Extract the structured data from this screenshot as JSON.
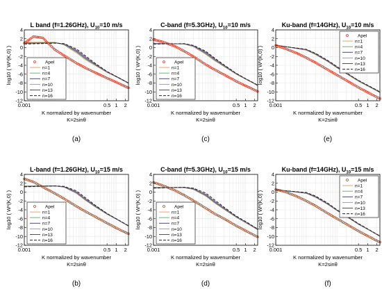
{
  "figure": {
    "captions": [
      "(a)",
      "(c)",
      "(e)",
      "(b)",
      "(d)",
      "(f)"
    ]
  },
  "chart_data": [
    {
      "type": "line",
      "title": "L band (f=1.26GHz), U10=10 m/s",
      "title_parts": {
        "pre": "L band (f=1.26GHz), U",
        "sub": "10",
        "post": "=10 m/s"
      },
      "xlabel": "K normalized by wavenumber",
      "xlabel2": "K=2sinθ",
      "ylabel": "log10 ( Wⁿ(K,0) )",
      "xscale": "log",
      "xlim": [
        0.001,
        2.5
      ],
      "ylim": [
        -12,
        4
      ],
      "xticks": [
        "0.001",
        "0.5",
        "1",
        "2"
      ],
      "yticks": [
        "4",
        "2",
        "0",
        "-2",
        "-4",
        "-6",
        "-8",
        "-10",
        "-12"
      ],
      "grid": true,
      "legend_position": "lower-left",
      "legend": [
        "Apel",
        "n=1",
        "n=4",
        "n=7",
        "n=10",
        "n=13",
        "n=16"
      ],
      "series_styles": [
        {
          "name": "Apel",
          "color": "#e8341c",
          "marker": "circle"
        },
        {
          "name": "n=1",
          "color": "#f0a060"
        },
        {
          "name": "n=4",
          "color": "#60c060"
        },
        {
          "name": "n=7",
          "color": "#4040c0"
        },
        {
          "name": "n=10",
          "color": "#d080d0"
        },
        {
          "name": "n=13",
          "color": "#505050"
        },
        {
          "name": "n=16",
          "color": "#202020",
          "dash": "4,2"
        }
      ],
      "series": [
        {
          "name": "Apel",
          "x": [
            0.001,
            0.002,
            0.004,
            0.006,
            0.01,
            0.02,
            0.05,
            0.1,
            0.2,
            0.5,
            1,
            2,
            2.5
          ],
          "y": [
            1.0,
            2.5,
            2.2,
            1.0,
            -0.5,
            -1.8,
            -3.5,
            -4.6,
            -5.6,
            -6.9,
            -7.8,
            -8.8,
            -9.1
          ]
        },
        {
          "name": "n=1",
          "x": [
            0.001,
            0.01,
            0.02,
            0.05,
            0.1,
            0.2,
            0.5,
            1,
            2,
            2.5
          ],
          "y": [
            1.2,
            1.2,
            0.6,
            -1.2,
            -2.8,
            -4.0,
            -5.6,
            -6.6,
            -7.7,
            -8.1
          ]
        },
        {
          "name": "n=16",
          "x": [
            0.001,
            0.01,
            0.02,
            0.05,
            0.1,
            0.2,
            0.5,
            1,
            2,
            2.5
          ],
          "y": [
            0.8,
            1.0,
            0.9,
            -0.3,
            -1.9,
            -3.5,
            -5.4,
            -6.5,
            -7.6,
            -8.0
          ]
        }
      ]
    },
    {
      "type": "line",
      "title": "C-band (f=5.3GHz), U10=10 m/s",
      "title_parts": {
        "pre": "C-band (f=5.3GHz), U",
        "sub": "10",
        "post": "=10 m/s"
      },
      "xlabel": "K normalized by wavenumber",
      "xlabel2": "K=2sinθ",
      "ylabel": "log10 ( Wⁿ(K,0) )",
      "xscale": "log",
      "xlim": [
        0.001,
        2.5
      ],
      "ylim": [
        -12,
        4
      ],
      "xticks": [
        "0.001",
        "0.5",
        "1",
        "2"
      ],
      "yticks": [
        "4",
        "2",
        "0",
        "-2",
        "-4",
        "-6",
        "-8",
        "-10",
        "-12"
      ],
      "grid": true,
      "legend_position": "lower-left",
      "legend": [
        "Apel",
        "n=1",
        "n=4",
        "n=7",
        "n=10",
        "n=13",
        "n=16"
      ],
      "series_styles": [
        {
          "name": "Apel",
          "color": "#e8341c",
          "marker": "circle"
        },
        {
          "name": "n=1",
          "color": "#f0a060"
        },
        {
          "name": "n=4",
          "color": "#60c060"
        },
        {
          "name": "n=7",
          "color": "#4040c0"
        },
        {
          "name": "n=10",
          "color": "#d080d0"
        },
        {
          "name": "n=13",
          "color": "#505050"
        },
        {
          "name": "n=16",
          "color": "#202020",
          "dash": "4,2"
        }
      ],
      "series": [
        {
          "name": "Apel",
          "x": [
            0.001,
            0.002,
            0.005,
            0.01,
            0.02,
            0.05,
            0.1,
            0.2,
            0.5,
            1,
            2,
            2.5
          ],
          "y": [
            1.8,
            1.3,
            0.3,
            -0.8,
            -2.0,
            -3.8,
            -5.0,
            -6.1,
            -7.6,
            -8.6,
            -9.6,
            -9.9
          ]
        },
        {
          "name": "n=1",
          "x": [
            0.001,
            0.01,
            0.02,
            0.05,
            0.1,
            0.2,
            0.5,
            1,
            2,
            2.5
          ],
          "y": [
            1.0,
            0.8,
            0.2,
            -1.5,
            -3.0,
            -4.3,
            -6.0,
            -7.1,
            -8.2,
            -8.6
          ]
        },
        {
          "name": "n=16",
          "x": [
            0.001,
            0.01,
            0.02,
            0.05,
            0.1,
            0.2,
            0.5,
            1,
            2,
            2.5
          ],
          "y": [
            0.8,
            0.9,
            0.5,
            -0.8,
            -2.4,
            -3.9,
            -5.8,
            -7.0,
            -8.1,
            -8.5
          ]
        }
      ]
    },
    {
      "type": "line",
      "title": "Ku-band (f=14GHz), U10=10 m/s",
      "title_parts": {
        "pre": "Ku-band (f=14GHz), U",
        "sub": "10",
        "post": "=10 m/s"
      },
      "xlabel": "K normalized by wavenumber",
      "xlabel2": "K=2sinθ",
      "ylabel": "log10 ( Wⁿ(K,0) )",
      "xscale": "log",
      "xlim": [
        0.001,
        2.5
      ],
      "ylim": [
        -12,
        4
      ],
      "xticks": [
        "0.001",
        "0.5",
        "1",
        "2"
      ],
      "yticks": [
        "4",
        "2",
        "0",
        "-2",
        "-4",
        "-6",
        "-8",
        "-10",
        "-12"
      ],
      "grid": true,
      "legend_position": "upper-right",
      "legend": [
        "Apel",
        "n=1",
        "n=4",
        "n=7",
        "n=10",
        "n=13",
        "n=16"
      ],
      "series_styles": [
        {
          "name": "Apel",
          "color": "#e8341c",
          "marker": "circle"
        },
        {
          "name": "n=1",
          "color": "#f0a060"
        },
        {
          "name": "n=4",
          "color": "#60c060"
        },
        {
          "name": "n=7",
          "color": "#4040c0"
        },
        {
          "name": "n=10",
          "color": "#d080d0"
        },
        {
          "name": "n=13",
          "color": "#505050"
        },
        {
          "name": "n=16",
          "color": "#202020",
          "dash": "4,2"
        }
      ],
      "series": [
        {
          "name": "Apel",
          "x": [
            0.001,
            0.002,
            0.005,
            0.01,
            0.02,
            0.05,
            0.1,
            0.2,
            0.5,
            1,
            2,
            2.5
          ],
          "y": [
            0.5,
            -0.2,
            -1.3,
            -2.3,
            -3.4,
            -5.0,
            -6.2,
            -7.4,
            -9.0,
            -10.1,
            -11.2,
            -11.5
          ]
        },
        {
          "name": "n=1",
          "x": [
            0.001,
            0.01,
            0.02,
            0.05,
            0.1,
            0.2,
            0.5,
            1,
            2,
            2.5
          ],
          "y": [
            0.6,
            -0.6,
            -1.6,
            -3.2,
            -4.6,
            -5.9,
            -7.6,
            -8.7,
            -9.8,
            -10.2
          ]
        },
        {
          "name": "n=16",
          "x": [
            0.001,
            0.01,
            0.02,
            0.05,
            0.1,
            0.2,
            0.5,
            1,
            2,
            2.5
          ],
          "y": [
            0.5,
            -0.4,
            -1.3,
            -2.9,
            -4.3,
            -5.7,
            -7.4,
            -8.5,
            -9.6,
            -10.0
          ]
        }
      ]
    },
    {
      "type": "line",
      "title": "L-band (f=1.26GHz), U10=15 m/s",
      "title_parts": {
        "pre": "L-band (f=1.26GHz), U",
        "sub": "10",
        "post": "=15 m/s"
      },
      "xlabel": "K normalized by wavenumber",
      "xlabel2": "K=2sinθ",
      "ylabel": "log10 ( Wⁿ(K,0) )",
      "xscale": "log",
      "xlim": [
        0.001,
        2.5
      ],
      "ylim": [
        -12,
        4
      ],
      "xticks": [
        "0.001",
        "0.5",
        "1",
        "2"
      ],
      "yticks": [
        "4",
        "2",
        "0",
        "-2",
        "-4",
        "-6",
        "-8",
        "-10",
        "-12"
      ],
      "grid": true,
      "legend_position": "lower-left",
      "legend": [
        "Apel",
        "n=1",
        "n=4",
        "n=7",
        "n=10",
        "n=13",
        "n=16"
      ],
      "series_styles": [
        {
          "name": "Apel",
          "color": "#a0522d",
          "marker": "circle"
        },
        {
          "name": "n=1",
          "color": "#f0a060"
        },
        {
          "name": "n=4",
          "color": "#60c060"
        },
        {
          "name": "n=7",
          "color": "#4040c0"
        },
        {
          "name": "n=10",
          "color": "#d080d0"
        },
        {
          "name": "n=13",
          "color": "#505050"
        },
        {
          "name": "n=16",
          "color": "#202020",
          "dash": "4,2"
        }
      ],
      "series": [
        {
          "name": "Apel",
          "x": [
            0.001,
            0.002,
            0.005,
            0.01,
            0.02,
            0.05,
            0.1,
            0.2,
            0.5,
            1,
            2,
            2.5
          ],
          "y": [
            3.0,
            2.3,
            0.8,
            -0.3,
            -1.5,
            -3.2,
            -4.4,
            -5.5,
            -7.0,
            -8.1,
            -9.1,
            -9.4
          ]
        },
        {
          "name": "n=1",
          "x": [
            0.001,
            0.01,
            0.02,
            0.05,
            0.1,
            0.2,
            0.5,
            1,
            2,
            2.5
          ],
          "y": [
            1.4,
            1.4,
            1.1,
            -0.3,
            -1.9,
            -3.3,
            -5.0,
            -6.1,
            -7.3,
            -7.7
          ]
        },
        {
          "name": "n=16",
          "x": [
            0.001,
            0.01,
            0.02,
            0.05,
            0.1,
            0.2,
            0.5,
            1,
            2,
            2.5
          ],
          "y": [
            1.2,
            1.4,
            1.3,
            0.3,
            -1.3,
            -2.9,
            -4.8,
            -6.0,
            -7.2,
            -7.6
          ]
        }
      ]
    },
    {
      "type": "line",
      "title": "C-band (f=5.3GHz), U10=15 m/s",
      "title_parts": {
        "pre": "C-band (f=5.3GHz), U",
        "sub": "10",
        "post": "=15 m/s"
      },
      "xlabel": "K normalized by wavenumber",
      "xlabel2": "K=2sinθ",
      "ylabel": "log10 ( Wⁿ(K,0) )",
      "xscale": "log",
      "xlim": [
        0.001,
        2.5
      ],
      "ylim": [
        -12,
        4
      ],
      "xticks": [
        "0.001",
        "0.5",
        "1",
        "2"
      ],
      "yticks": [
        "4",
        "2",
        "0",
        "-2",
        "-4",
        "-6",
        "-8",
        "-10",
        "-12"
      ],
      "grid": true,
      "legend_position": "lower-left",
      "legend": [
        "Apel",
        "n=1",
        "n=4",
        "n=7",
        "n=10",
        "n=13",
        "n=16"
      ],
      "series_styles": [
        {
          "name": "Apel",
          "color": "#a0522d",
          "marker": "circle"
        },
        {
          "name": "n=1",
          "color": "#f0a060"
        },
        {
          "name": "n=4",
          "color": "#60c060"
        },
        {
          "name": "n=7",
          "color": "#4040c0"
        },
        {
          "name": "n=10",
          "color": "#d080d0"
        },
        {
          "name": "n=13",
          "color": "#505050"
        },
        {
          "name": "n=16",
          "color": "#202020",
          "dash": "4,2"
        }
      ],
      "series": [
        {
          "name": "Apel",
          "x": [
            0.001,
            0.002,
            0.005,
            0.01,
            0.02,
            0.05,
            0.1,
            0.2,
            0.5,
            1,
            2,
            2.5
          ],
          "y": [
            2.2,
            1.5,
            0.4,
            -0.7,
            -1.9,
            -3.6,
            -4.9,
            -6.0,
            -7.6,
            -8.7,
            -9.8,
            -10.1
          ]
        },
        {
          "name": "n=1",
          "x": [
            0.001,
            0.01,
            0.02,
            0.05,
            0.1,
            0.2,
            0.5,
            1,
            2,
            2.5
          ],
          "y": [
            1.1,
            1.0,
            0.6,
            -0.9,
            -2.5,
            -3.9,
            -5.7,
            -6.9,
            -8.1,
            -8.5
          ]
        },
        {
          "name": "n=16",
          "x": [
            0.001,
            0.01,
            0.02,
            0.05,
            0.1,
            0.2,
            0.5,
            1,
            2,
            2.5
          ],
          "y": [
            0.9,
            1.1,
            0.9,
            -0.2,
            -1.8,
            -3.4,
            -5.4,
            -6.6,
            -7.9,
            -8.3
          ]
        }
      ]
    },
    {
      "type": "line",
      "title": "Ku-band (f=14GHz), U10=15 m/s",
      "title_parts": {
        "pre": "Ku-band (f=14GHz), U",
        "sub": "10",
        "post": "=15 m/s"
      },
      "xlabel": "K normalized by wavenumber",
      "xlabel2": "K=2sinθ",
      "ylabel": "log10 ( Wⁿ(K,0) )",
      "xscale": "log",
      "xlim": [
        0.001,
        2.5
      ],
      "ylim": [
        -12,
        4
      ],
      "xticks": [
        "0.001",
        "0.5",
        "1",
        "2"
      ],
      "yticks": [
        "4",
        "2",
        "0",
        "-2",
        "-4",
        "-6",
        "-8",
        "-10",
        "-12"
      ],
      "grid": true,
      "legend_position": "upper-right",
      "legend": [
        "Apel",
        "n=1",
        "n=4",
        "n=7",
        "n=10",
        "n=13",
        "n=16"
      ],
      "series_styles": [
        {
          "name": "Apel",
          "color": "#a0522d",
          "marker": "circle"
        },
        {
          "name": "n=1",
          "color": "#f0a060"
        },
        {
          "name": "n=4",
          "color": "#60c060"
        },
        {
          "name": "n=7",
          "color": "#4040c0"
        },
        {
          "name": "n=10",
          "color": "#d080d0"
        },
        {
          "name": "n=13",
          "color": "#505050"
        },
        {
          "name": "n=16",
          "color": "#202020",
          "dash": "4,2"
        }
      ],
      "series": [
        {
          "name": "Apel",
          "x": [
            0.001,
            0.002,
            0.005,
            0.01,
            0.02,
            0.05,
            0.1,
            0.2,
            0.5,
            1,
            2,
            2.5
          ],
          "y": [
            0.6,
            0.1,
            -1.0,
            -2.0,
            -3.1,
            -4.8,
            -6.0,
            -7.2,
            -8.8,
            -9.9,
            -11.0,
            -11.3
          ]
        },
        {
          "name": "n=1",
          "x": [
            0.001,
            0.01,
            0.02,
            0.05,
            0.1,
            0.2,
            0.5,
            1,
            2,
            2.5
          ],
          "y": [
            0.6,
            -0.3,
            -1.2,
            -2.8,
            -4.2,
            -5.5,
            -7.3,
            -8.4,
            -9.6,
            -10.0
          ]
        },
        {
          "name": "n=16",
          "x": [
            0.001,
            0.01,
            0.02,
            0.05,
            0.1,
            0.2,
            0.5,
            1,
            2,
            2.5
          ],
          "y": [
            0.5,
            -0.1,
            -0.9,
            -2.5,
            -4.0,
            -5.3,
            -7.1,
            -8.3,
            -9.5,
            -9.9
          ]
        }
      ]
    }
  ]
}
